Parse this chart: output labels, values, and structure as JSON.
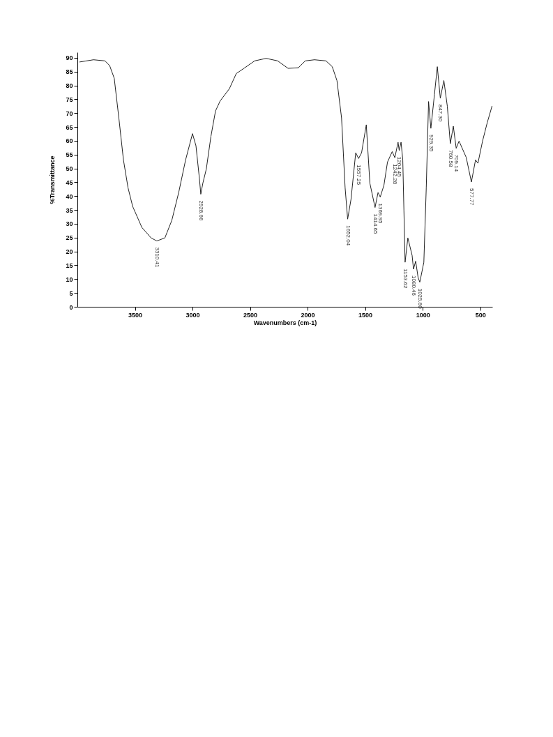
{
  "chart_data": {
    "type": "line",
    "xlabel": "Wavenumbers (cm-1)",
    "ylabel": "%Transmittance",
    "color": "#222222",
    "xlim": [
      4000,
      395
    ],
    "ylim": [
      0,
      92
    ],
    "xticks": [
      3500,
      3000,
      2500,
      2000,
      1500,
      1000,
      500
    ],
    "yticks": [
      0,
      5,
      10,
      15,
      20,
      25,
      30,
      35,
      40,
      45,
      50,
      55,
      60,
      65,
      70,
      75,
      80,
      85,
      90
    ],
    "x": [
      3980,
      3860,
      3760,
      3720,
      3680,
      3640,
      3600,
      3560,
      3520,
      3440,
      3360,
      3310,
      3240,
      3180,
      3120,
      3060,
      3000,
      2970,
      2940,
      2928,
      2910,
      2880,
      2840,
      2800,
      2760,
      2680,
      2620,
      2560,
      2460,
      2360,
      2260,
      2170,
      2080,
      2020,
      1940,
      1840,
      1786,
      1745,
      1705,
      1674,
      1652,
      1623,
      1582,
      1557,
      1531,
      1490,
      1459,
      1414,
      1388,
      1369,
      1337,
      1306,
      1265,
      1242,
      1214,
      1204,
      1188,
      1173,
      1163,
      1153,
      1129,
      1092,
      1080,
      1061,
      1040,
      1025,
      990,
      969,
      949,
      929,
      898,
      873,
      847,
      816,
      786,
      760,
      734,
      709,
      684,
      622,
      592,
      577,
      541,
      520,
      480,
      439,
      398
    ],
    "values": [
      88.5,
      89.3,
      88.9,
      87.2,
      82.6,
      68.3,
      53.1,
      43.0,
      36.3,
      28.7,
      24.9,
      23.8,
      24.9,
      31.2,
      41.3,
      53.1,
      62.6,
      58.2,
      46.4,
      40.7,
      44.7,
      49.8,
      61.6,
      70.8,
      74.4,
      78.8,
      84.3,
      86.0,
      88.9,
      89.8,
      88.9,
      86.2,
      86.4,
      88.9,
      89.3,
      88.9,
      86.8,
      81.8,
      68.3,
      43.0,
      31.7,
      38.8,
      55.7,
      53.6,
      55.7,
      65.8,
      44.7,
      35.9,
      41.3,
      39.7,
      43.9,
      52.3,
      56.1,
      53.9,
      59.5,
      56.5,
      59.5,
      53.1,
      34.6,
      16.1,
      24.9,
      18.6,
      13.6,
      16.5,
      10.6,
      8.9,
      16.1,
      43.0,
      74.2,
      64.5,
      76.7,
      86.8,
      75.4,
      81.8,
      72.5,
      59.0,
      65.3,
      57.3,
      59.9,
      54.0,
      48.1,
      45.1,
      53.1,
      51.9,
      59.9,
      66.6,
      72.5
    ],
    "annotations": [
      {
        "text": "3310.41",
        "x": 3310.41,
        "y": 23.8
      },
      {
        "text": "2928.66",
        "x": 2928.66,
        "y": 40.7
      },
      {
        "text": "1652.04",
        "x": 1652.04,
        "y": 31.7
      },
      {
        "text": "1557.25",
        "x": 1557.25,
        "y": 53.6
      },
      {
        "text": "1414.65",
        "x": 1414.65,
        "y": 35.9
      },
      {
        "text": "1369.95",
        "x": 1369.95,
        "y": 39.7
      },
      {
        "text": "1242.28",
        "x": 1242.28,
        "y": 53.9
      },
      {
        "text": "1204.45",
        "x": 1204.45,
        "y": 56.5
      },
      {
        "text": "1153.62",
        "x": 1153.62,
        "y": 16.1
      },
      {
        "text": "1080.46",
        "x": 1080.46,
        "y": 13.6
      },
      {
        "text": "1025.80",
        "x": 1025.8,
        "y": 8.9
      },
      {
        "text": "929.35",
        "x": 929.35,
        "y": 64.5
      },
      {
        "text": "847.30",
        "x": 847.3,
        "y": 75.4
      },
      {
        "text": "760.58",
        "x": 760.58,
        "y": 59.0
      },
      {
        "text": "709.14",
        "x": 709.14,
        "y": 57.3
      },
      {
        "text": "577.77",
        "x": 577.77,
        "y": 45.1
      }
    ]
  }
}
